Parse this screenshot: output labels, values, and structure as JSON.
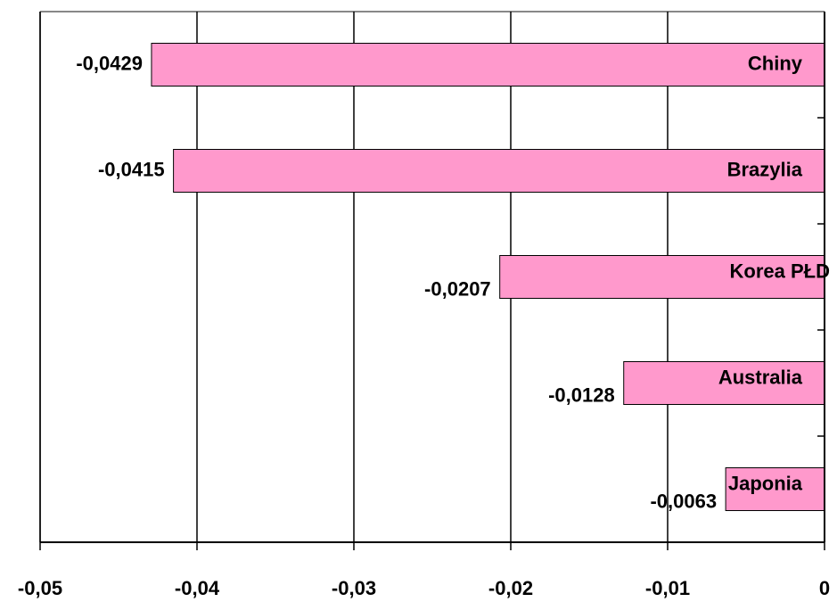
{
  "chart_data": {
    "type": "barh",
    "categories": [
      "Chiny",
      "Brazylia",
      "Korea PŁD",
      "Australia",
      "Japonia"
    ],
    "values": [
      -0.0429,
      -0.0415,
      -0.0207,
      -0.0128,
      -0.0063
    ],
    "value_labels": [
      "-0,0429",
      "-0,0415",
      "-0,0207",
      "-0,0128",
      "-0,0063"
    ],
    "color": "#ff99cc",
    "xlim": [
      -0.05,
      0
    ],
    "xticks": [
      {
        "value": -0.05,
        "label": "-0,05"
      },
      {
        "value": -0.04,
        "label": "-0,04"
      },
      {
        "value": -0.03,
        "label": "-0,03"
      },
      {
        "value": -0.02,
        "label": "-0,02"
      },
      {
        "value": -0.01,
        "label": "-0,01"
      },
      0
    ],
    "grid": true
  }
}
